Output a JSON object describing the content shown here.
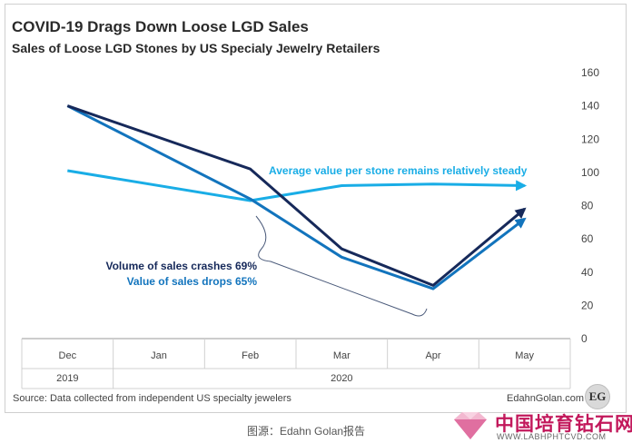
{
  "title": "COVID-19 Drags Down Loose LGD Sales",
  "subtitle": "Sales of Loose LGD Stones by US Specialy Jewelry Retailers",
  "source": "Source: Data collected from independent US specialty jewelers",
  "brand": "EdahnGolan.com",
  "logo_text": "EG",
  "caption": "图源：Edahn Golan报告",
  "watermark": {
    "cn": "中国培育钻石网",
    "url": "WWW.LABHPHTCVD.COM"
  },
  "colors": {
    "volume": "#16295a",
    "value": "#1274bd",
    "avg": "#19ade6",
    "axis": "#888888"
  },
  "chart_data": {
    "type": "line",
    "categories": [
      "Dec",
      "Jan",
      "Feb",
      "Mar",
      "Apr",
      "May"
    ],
    "year_labels": [
      {
        "text": "2019",
        "under": [
          "Dec"
        ]
      },
      {
        "text": "2020",
        "under": [
          "Jan",
          "Feb",
          "Mar",
          "Apr",
          "May"
        ]
      }
    ],
    "ylim": [
      0,
      160
    ],
    "yticks": [
      0,
      20,
      40,
      60,
      80,
      100,
      120,
      140,
      160
    ],
    "y_axis_side": "right",
    "grid": false,
    "series": [
      {
        "key": "volume",
        "values": [
          140,
          null,
          102,
          54,
          32,
          78
        ]
      },
      {
        "key": "value",
        "values": [
          140,
          null,
          84,
          49,
          30,
          72
        ]
      },
      {
        "key": "avg",
        "values": [
          101,
          null,
          83,
          92,
          93,
          92
        ]
      }
    ],
    "annotations": {
      "volume": "Volume of sales crashes 69%",
      "value": "Value of sales drops 65%",
      "avg": "Average value per stone remains relatively steady"
    }
  }
}
